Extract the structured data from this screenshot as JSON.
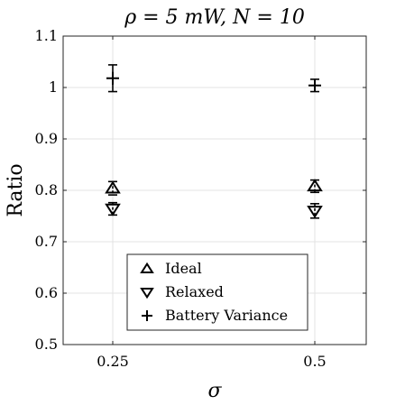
{
  "chart_data": {
    "type": "scatter",
    "title": "ρ = 5 mW, N = 10",
    "xlabel": "σ",
    "ylabel": "Ratio",
    "categories": [
      "0.25",
      "0.5"
    ],
    "ylim": [
      0.5,
      1.1
    ],
    "yticks": [
      "0.5",
      "0.6",
      "0.7",
      "0.8",
      "0.9",
      "1",
      "1.1"
    ],
    "grid": true,
    "legend_position": "bottom-center",
    "series": [
      {
        "name": "Ideal",
        "marker": "triangle-up",
        "values": [
          0.804,
          0.808
        ],
        "errors": [
          0.013,
          0.012
        ]
      },
      {
        "name": "Relaxed",
        "marker": "triangle-down",
        "values": [
          0.764,
          0.76
        ],
        "errors": [
          0.012,
          0.014
        ]
      },
      {
        "name": "Battery Variance",
        "marker": "plus",
        "values": [
          1.018,
          1.004
        ],
        "errors": [
          0.026,
          0.012
        ]
      }
    ]
  }
}
